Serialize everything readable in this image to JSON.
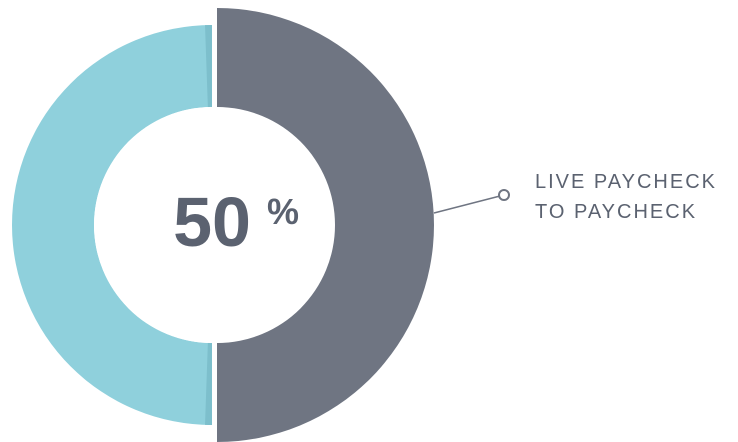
{
  "chart_data": {
    "type": "pie",
    "style": "donut",
    "slices": [
      {
        "label": "LIVE PAYCHECK TO PAYCHECK",
        "value": 50,
        "color": "#6f7582",
        "highlighted": true
      },
      {
        "label": "",
        "value": 50,
        "color": "#8fd0dc"
      }
    ],
    "center_value": "50",
    "center_unit": "%",
    "callout_lines": [
      "LIVE PAYCHECK",
      "TO PAYCHECK"
    ],
    "colors": {
      "highlight": "#6f7582",
      "other": "#8fd0dc",
      "other_edge": "#7dbfcc",
      "text": "#5b6270",
      "callout_line": "#6f7582"
    }
  }
}
